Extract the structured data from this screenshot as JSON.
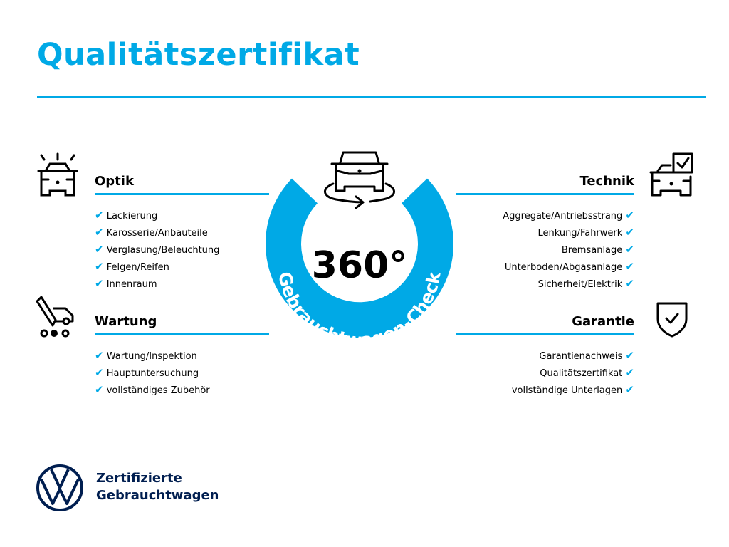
{
  "title": "Qualitätszertifikat",
  "colors": {
    "accent": "#00a9e6",
    "brand": "#001e50"
  },
  "center": {
    "value": "360°",
    "ring_text": "Gebrauchtwagen-Check",
    "icon": "car-rotate-icon"
  },
  "sections": {
    "optik": {
      "heading": "Optik",
      "icon": "car-lights-icon",
      "items": [
        "Lackierung",
        "Karosserie/Anbauteile",
        "Verglasung/Beleuchtung",
        "Felgen/Reifen",
        "Innenraum"
      ]
    },
    "wartung": {
      "heading": "Wartung",
      "icon": "service-van-icon",
      "items": [
        "Wartung/Inspektion",
        "Hauptuntersuchung",
        "vollständiges Zubehör"
      ]
    },
    "technik": {
      "heading": "Technik",
      "icon": "car-checkbox-icon",
      "items": [
        "Aggregate/Antriebsstrang",
        "Lenkung/Fahrwerk",
        "Bremsanlage",
        "Unterboden/Abgasanlage",
        "Sicherheit/Elektrik"
      ]
    },
    "garantie": {
      "heading": "Garantie",
      "icon": "shield-check-icon",
      "items": [
        "Garantienachweis",
        "Qualitätszertifikat",
        "vollständige Unterlagen"
      ]
    }
  },
  "footer": {
    "line1": "Zertifizierte",
    "line2": "Gebrauchtwagen",
    "logo": "VW"
  }
}
